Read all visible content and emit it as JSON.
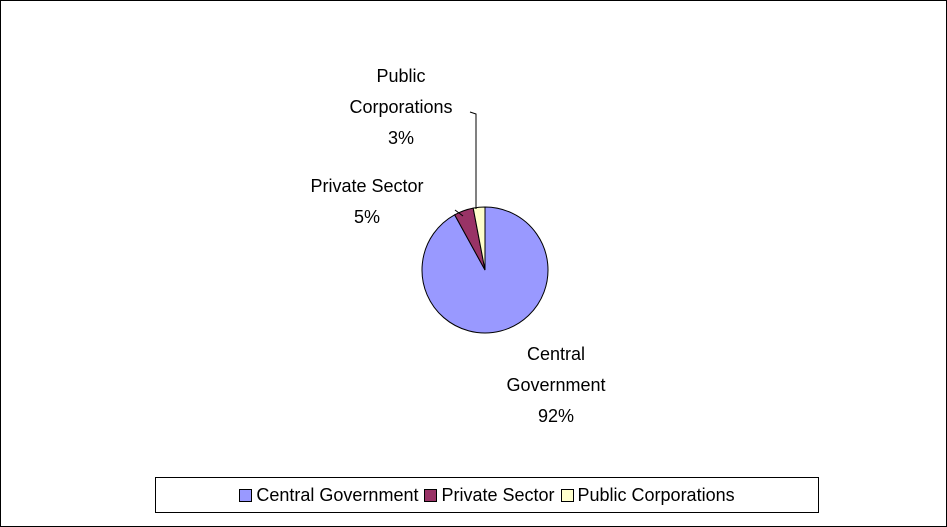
{
  "chart_data": {
    "type": "pie",
    "title": "",
    "slices": [
      {
        "name": "Central Government",
        "value": 92,
        "label_pct": "92%",
        "label_lines": [
          "Central",
          "Government"
        ],
        "color": "#9999ff"
      },
      {
        "name": "Private Sector",
        "value": 5,
        "label_pct": "5%",
        "label_lines": [
          "Private Sector"
        ],
        "color": "#993366"
      },
      {
        "name": "Public Corporations",
        "value": 3,
        "label_pct": "3%",
        "label_lines": [
          "Public",
          "Corporations"
        ],
        "color": "#ffffcc"
      }
    ],
    "legend": {
      "position": "bottom"
    }
  }
}
